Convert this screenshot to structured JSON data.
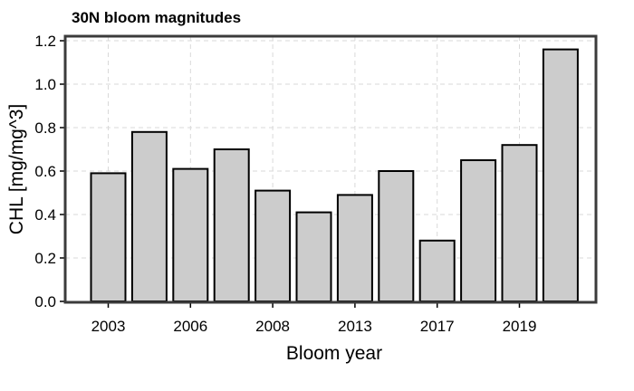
{
  "chart_data": {
    "type": "bar",
    "title": "30N bloom magnitudes",
    "xlabel": "Bloom year",
    "ylabel": "CHL [mg/mg^3]",
    "values": [
      0.59,
      0.78,
      0.61,
      0.7,
      0.51,
      0.41,
      0.49,
      0.6,
      0.28,
      0.65,
      0.72,
      1.16
    ],
    "x_tick_labels": [
      "2003",
      "2006",
      "2008",
      "2013",
      "2017",
      "2019"
    ],
    "x_tick_bar_index": [
      0,
      2,
      4,
      6,
      8,
      10
    ],
    "y_ticks": [
      "0.0",
      "0.2",
      "0.4",
      "0.6",
      "0.8",
      "1.0",
      "1.2"
    ],
    "ylim": [
      0,
      1.2
    ],
    "grid": true,
    "bar_color": "#cccccc",
    "edge_color": "#000000"
  }
}
